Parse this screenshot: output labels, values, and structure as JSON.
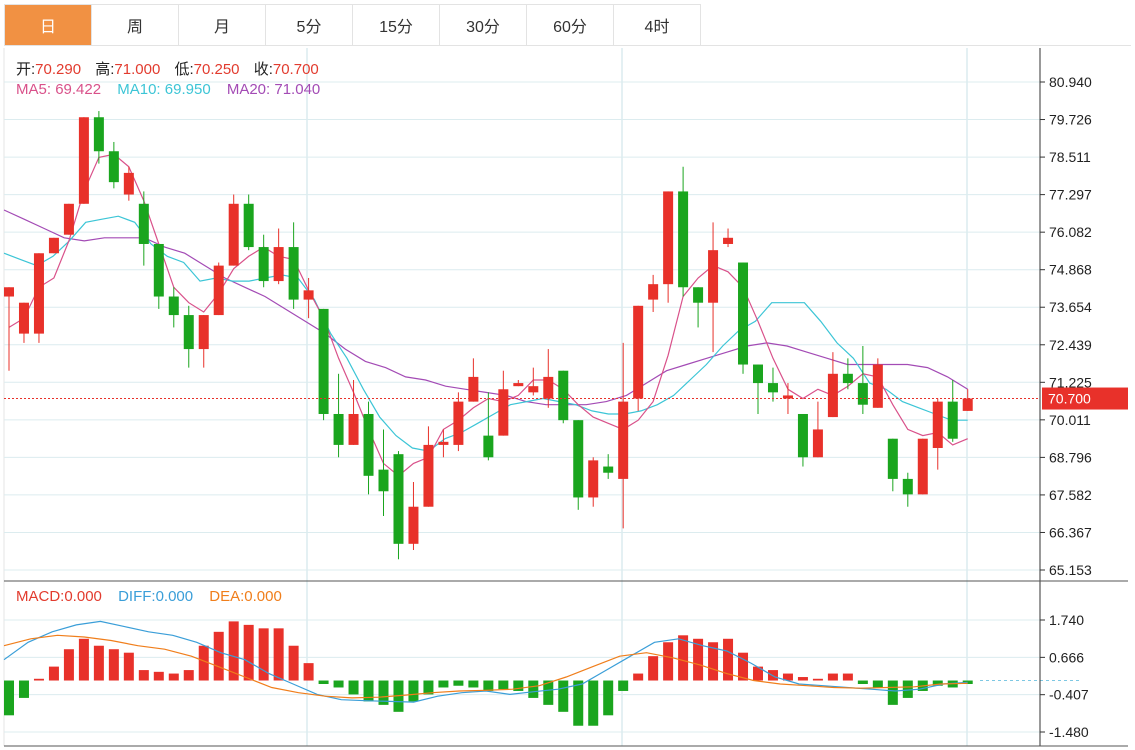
{
  "tabs": [
    {
      "label": "日",
      "active": true
    },
    {
      "label": "周",
      "active": false
    },
    {
      "label": "月",
      "active": false
    },
    {
      "label": "5分",
      "active": false
    },
    {
      "label": "15分",
      "active": false
    },
    {
      "label": "30分",
      "active": false
    },
    {
      "label": "60分",
      "active": false
    },
    {
      "label": "4时",
      "active": false
    }
  ],
  "ohlc_legend": {
    "open_label": "开:",
    "open": "70.290",
    "high_label": "高:",
    "high": "71.000",
    "low_label": "低:",
    "low": "70.250",
    "close_label": "收:",
    "close": "70.700"
  },
  "ma_legend": {
    "ma5_label": "MA5:",
    "ma5": "69.422",
    "ma10_label": "MA10:",
    "ma10": "69.950",
    "ma20_label": "MA20:",
    "ma20": "71.040"
  },
  "macd_legend": {
    "macd_label": "MACD:",
    "macd": "0.000",
    "diff_label": "DIFF:",
    "diff": "0.000",
    "dea_label": "DEA:",
    "dea": "0.000"
  },
  "current_price_label": "70.700",
  "colors": {
    "up": "#e8312a",
    "down": "#1aa51e",
    "ma5": "#d9518a",
    "ma10": "#3cc5d6",
    "ma20": "#a34bb5",
    "diff": "#3a9ed8",
    "dea": "#f07e1b",
    "active_tab": "#f19143"
  },
  "chart_data": [
    {
      "type": "candlestick",
      "y_ticks": [
        "80.940",
        "79.726",
        "78.511",
        "77.297",
        "76.082",
        "74.868",
        "73.654",
        "72.439",
        "71.225",
        "70.011",
        "68.796",
        "67.582",
        "66.367",
        "65.153"
      ],
      "ylim": [
        65.153,
        80.94
      ],
      "current_price": 70.7,
      "candles": [
        [
          74.0,
          74.3,
          73.6,
          71.6
        ],
        [
          72.8,
          73.8,
          72.8,
          72.5
        ],
        [
          72.8,
          75.4,
          72.6,
          72.5
        ],
        [
          75.4,
          75.9,
          75.0,
          76.2
        ],
        [
          76.0,
          77.0,
          76.0,
          76.7
        ],
        [
          77.0,
          79.8,
          77.0,
          78.9
        ],
        [
          79.8,
          78.7,
          80.0,
          78.3
        ],
        [
          78.7,
          77.7,
          79.0,
          77.5
        ],
        [
          77.3,
          78.0,
          78.2,
          77.1
        ],
        [
          77.0,
          75.7,
          77.4,
          75.0
        ],
        [
          75.7,
          74.0,
          75.7,
          73.6
        ],
        [
          74.0,
          73.4,
          74.3,
          73.0
        ],
        [
          73.4,
          72.3,
          73.7,
          71.7
        ],
        [
          72.3,
          73.4,
          73.4,
          71.7
        ],
        [
          73.4,
          75.0,
          75.1,
          73.4
        ],
        [
          75.0,
          77.0,
          77.3,
          75.0
        ],
        [
          77.0,
          75.6,
          77.3,
          75.5
        ],
        [
          75.6,
          74.5,
          76.0,
          74.3
        ],
        [
          74.5,
          75.6,
          76.2,
          74.4
        ],
        [
          75.6,
          73.9,
          76.4,
          73.6
        ],
        [
          73.9,
          74.2,
          74.6,
          73.3
        ],
        [
          73.6,
          70.2,
          73.6,
          70.0
        ],
        [
          70.2,
          69.2,
          71.5,
          68.8
        ],
        [
          69.2,
          70.2,
          71.3,
          69.2
        ],
        [
          70.2,
          68.2,
          70.6,
          67.6
        ],
        [
          68.4,
          67.7,
          69.7,
          66.9
        ],
        [
          68.9,
          66.0,
          69.0,
          65.5
        ],
        [
          66.0,
          67.2,
          68.0,
          65.8
        ],
        [
          67.2,
          69.2,
          69.8,
          67.2
        ],
        [
          69.2,
          69.3,
          69.7,
          68.8
        ],
        [
          69.2,
          70.6,
          70.9,
          69.0
        ],
        [
          70.6,
          71.4,
          72.0,
          70.6
        ],
        [
          69.5,
          68.8,
          70.9,
          68.7
        ],
        [
          69.5,
          71.0,
          71.6,
          69.5
        ],
        [
          71.1,
          71.2,
          71.3,
          71.1
        ],
        [
          70.9,
          71.1,
          71.7,
          70.8
        ],
        [
          70.7,
          71.4,
          72.3,
          70.4
        ],
        [
          71.6,
          70.0,
          71.6,
          69.9
        ],
        [
          70.0,
          67.5,
          70.0,
          67.1
        ],
        [
          67.5,
          68.7,
          68.8,
          67.2
        ],
        [
          68.5,
          68.3,
          68.9,
          68.1
        ],
        [
          68.1,
          70.6,
          72.5,
          66.5
        ],
        [
          70.7,
          73.7,
          73.7,
          70.3
        ],
        [
          73.9,
          74.4,
          74.7,
          73.5
        ],
        [
          74.4,
          77.4,
          77.4,
          73.8
        ],
        [
          77.4,
          74.3,
          78.2,
          74.0
        ],
        [
          74.3,
          73.8,
          74.3,
          73.0
        ],
        [
          73.8,
          75.5,
          76.4,
          72.2
        ],
        [
          75.7,
          75.9,
          76.2,
          75.6
        ],
        [
          75.1,
          71.8,
          75.1,
          71.5
        ],
        [
          71.8,
          71.2,
          71.8,
          70.2
        ],
        [
          71.2,
          70.9,
          71.7,
          70.6
        ],
        [
          70.7,
          70.8,
          71.2,
          70.2
        ],
        [
          70.2,
          68.8,
          70.2,
          68.5
        ],
        [
          68.8,
          69.7,
          70.6,
          69.5
        ],
        [
          70.1,
          71.5,
          72.2,
          70.1
        ],
        [
          71.5,
          71.2,
          72.0,
          71.0
        ],
        [
          71.2,
          70.5,
          72.4,
          70.2
        ],
        [
          70.4,
          71.8,
          72.0,
          70.4
        ],
        [
          69.4,
          68.1,
          69.4,
          67.7
        ],
        [
          68.1,
          67.6,
          68.3,
          67.2
        ],
        [
          67.6,
          69.4,
          69.4,
          67.6
        ],
        [
          69.1,
          70.6,
          70.7,
          68.4
        ],
        [
          70.6,
          69.4,
          71.3,
          69.3
        ],
        [
          70.3,
          70.7,
          71.0,
          70.3
        ]
      ],
      "ma5": [
        73.0,
        73.3,
        74.3,
        74.6,
        75.8,
        77.4,
        78.5,
        78.6,
        78.2,
        77.1,
        75.7,
        74.3,
        73.8,
        73.5,
        74.1,
        74.9,
        75.3,
        75.6,
        75.3,
        75.2,
        74.2,
        73.3,
        72.0,
        70.9,
        69.7,
        68.6,
        68.2,
        68.6,
        68.8,
        69.7,
        70.0,
        70.4,
        70.7,
        70.6,
        70.8,
        71.3,
        71.3,
        71.0,
        70.5,
        70.1,
        69.9,
        69.7,
        70.0,
        70.6,
        72.1,
        74.0,
        74.6,
        75.0,
        74.8,
        74.3,
        73.2,
        72.0,
        71.0,
        70.7,
        71.0,
        70.8,
        71.1,
        71.5,
        71.4,
        70.5,
        69.7,
        69.5,
        69.6,
        69.2,
        69.4
      ],
      "ma10": [
        75.4,
        75.2,
        75.0,
        75.3,
        75.8,
        76.4,
        76.5,
        76.6,
        76.4,
        75.7,
        75.3,
        75.1,
        74.5,
        74.6,
        74.5,
        74.5,
        74.6,
        74.7,
        74.6,
        73.9,
        72.8,
        72.0,
        71.0,
        70.1,
        69.5,
        69.1,
        69.0,
        69.4,
        69.6,
        69.9,
        70.2,
        70.5,
        70.6,
        70.7,
        70.6,
        70.5,
        70.3,
        70.2,
        70.2,
        70.3,
        70.5,
        70.8,
        71.3,
        71.8,
        72.4,
        72.9,
        73.2,
        73.8,
        73.8,
        73.8,
        73.2,
        72.5,
        72.0,
        71.2,
        71.0,
        70.6,
        70.4,
        70.2,
        70.0,
        70.0
      ],
      "ma20": [
        76.8,
        76.5,
        76.2,
        75.9,
        75.8,
        75.9,
        75.9,
        75.9,
        75.6,
        75.4,
        75.0,
        74.6,
        74.3,
        74.0,
        73.6,
        73.2,
        72.8,
        72.3,
        71.9,
        71.7,
        71.4,
        71.3,
        71.1,
        71.0,
        70.9,
        70.8,
        70.6,
        70.5,
        70.5,
        70.5,
        70.6,
        70.8,
        71.2,
        71.6,
        71.8,
        72.0,
        72.2,
        72.4,
        72.5,
        72.4,
        72.2,
        72.0,
        71.8,
        71.8,
        71.8,
        71.8,
        71.7,
        71.4,
        71.0
      ]
    },
    {
      "type": "macd",
      "y_ticks": [
        "1.740",
        "0.666",
        "-0.407",
        "-1.480"
      ],
      "ylim": [
        -1.48,
        1.74
      ],
      "histogram": [
        -1.0,
        -0.5,
        0.05,
        0.4,
        0.9,
        1.2,
        1.0,
        0.9,
        0.8,
        0.3,
        0.25,
        0.2,
        0.3,
        1.0,
        1.4,
        1.7,
        1.6,
        1.5,
        1.5,
        1.0,
        0.5,
        -0.1,
        -0.2,
        -0.4,
        -0.6,
        -0.7,
        -0.9,
        -0.6,
        -0.4,
        -0.2,
        -0.15,
        -0.2,
        -0.3,
        -0.25,
        -0.3,
        -0.5,
        -0.7,
        -0.9,
        -1.3,
        -1.3,
        -1.0,
        -0.3,
        0.2,
        0.7,
        1.1,
        1.3,
        1.2,
        1.1,
        1.2,
        0.8,
        0.4,
        0.3,
        0.2,
        0.1,
        0.05,
        0.2,
        0.2,
        -0.1,
        -0.2,
        -0.7,
        -0.5,
        -0.3,
        -0.15,
        -0.2,
        -0.1
      ],
      "diff": [
        0.6,
        1.1,
        1.4,
        1.6,
        1.7,
        1.55,
        1.4,
        1.3,
        1.1,
        0.8,
        0.6,
        0.2,
        -0.1,
        -0.4,
        -0.55,
        -0.58,
        -0.6,
        -0.62,
        -0.45,
        -0.35,
        -0.3,
        -0.4,
        -0.32,
        -0.25,
        -0.1,
        0.3,
        0.7,
        1.1,
        1.2,
        1.0,
        0.85,
        0.5,
        0.1,
        -0.1,
        -0.15,
        -0.2,
        -0.25,
        -0.3,
        -0.25,
        -0.1,
        -0.05
      ],
      "dea": [
        1.0,
        1.2,
        1.3,
        1.25,
        1.15,
        1.0,
        0.9,
        0.7,
        0.4,
        0.1,
        -0.2,
        -0.35,
        -0.45,
        -0.5,
        -0.48,
        -0.42,
        -0.35,
        -0.3,
        -0.28,
        -0.25,
        -0.15,
        0.1,
        0.4,
        0.7,
        0.8,
        0.65,
        0.45,
        0.2,
        0.0,
        -0.1,
        -0.15,
        -0.2,
        -0.22,
        -0.2,
        -0.18,
        -0.1,
        -0.08
      ]
    }
  ]
}
